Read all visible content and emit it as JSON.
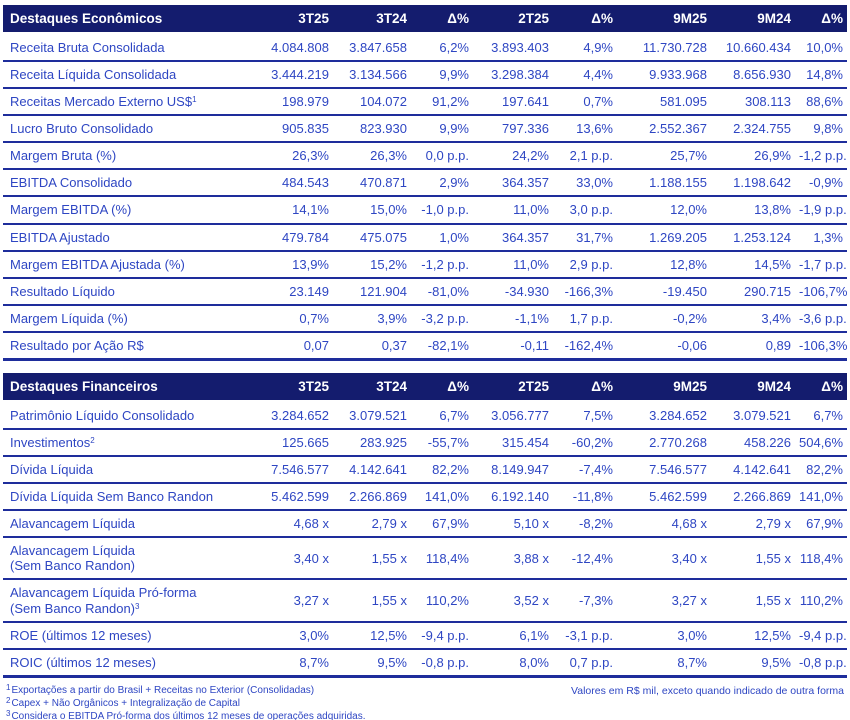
{
  "columns": [
    "3T25",
    "3T24",
    "Δ%",
    "2T25",
    "Δ%",
    "9M25",
    "9M24",
    "Δ%"
  ],
  "tables": [
    {
      "title": "Destaques Econômicos",
      "rows": [
        {
          "label": "Receita Bruta Consolidada",
          "values": [
            "4.084.808",
            "3.847.658",
            "6,2%",
            "3.893.403",
            "4,9%",
            "11.730.728",
            "10.660.434",
            "10,0%"
          ]
        },
        {
          "label": "Receita Líquida Consolidada",
          "values": [
            "3.444.219",
            "3.134.566",
            "9,9%",
            "3.298.384",
            "4,4%",
            "9.933.968",
            "8.656.930",
            "14,8%"
          ]
        },
        {
          "label": "Receitas Mercado Externo US$",
          "label_sup": "1",
          "values": [
            "198.979",
            "104.072",
            "91,2%",
            "197.641",
            "0,7%",
            "581.095",
            "308.113",
            "88,6%"
          ]
        },
        {
          "label": "Lucro Bruto Consolidado",
          "values": [
            "905.835",
            "823.930",
            "9,9%",
            "797.336",
            "13,6%",
            "2.552.367",
            "2.324.755",
            "9,8%"
          ]
        },
        {
          "label": "Margem Bruta (%)",
          "values": [
            "26,3%",
            "26,3%",
            "0,0 p.p.",
            "24,2%",
            "2,1 p.p.",
            "25,7%",
            "26,9%",
            "-1,2 p.p."
          ]
        },
        {
          "label": "EBITDA Consolidado",
          "values": [
            "484.543",
            "470.871",
            "2,9%",
            "364.357",
            "33,0%",
            "1.188.155",
            "1.198.642",
            "-0,9%"
          ]
        },
        {
          "label": "Margem EBITDA (%)",
          "values": [
            "14,1%",
            "15,0%",
            "-1,0 p.p.",
            "11,0%",
            "3,0 p.p.",
            "12,0%",
            "13,8%",
            "-1,9 p.p."
          ]
        },
        {
          "label": "EBITDA Ajustado",
          "values": [
            "479.784",
            "475.075",
            "1,0%",
            "364.357",
            "31,7%",
            "1.269.205",
            "1.253.124",
            "1,3%"
          ]
        },
        {
          "label": "Margem EBITDA Ajustada (%)",
          "values": [
            "13,9%",
            "15,2%",
            "-1,2 p.p.",
            "11,0%",
            "2,9 p.p.",
            "12,8%",
            "14,5%",
            "-1,7 p.p."
          ]
        },
        {
          "label": "Resultado Líquido",
          "values": [
            "23.149",
            "121.904",
            "-81,0%",
            "-34.930",
            "-166,3%",
            "-19.450",
            "290.715",
            "-106,7%"
          ]
        },
        {
          "label": "Margem Líquida (%)",
          "values": [
            "0,7%",
            "3,9%",
            "-3,2 p.p.",
            "-1,1%",
            "1,7 p.p.",
            "-0,2%",
            "3,4%",
            "-3,6 p.p."
          ]
        },
        {
          "label": "Resultado por Ação R$",
          "values": [
            "0,07",
            "0,37",
            "-82,1%",
            "-0,11",
            "-162,4%",
            "-0,06",
            "0,89",
            "-106,3%"
          ]
        }
      ]
    },
    {
      "title": "Destaques Financeiros",
      "rows": [
        {
          "label": "Patrimônio Líquido Consolidado",
          "values": [
            "3.284.652",
            "3.079.521",
            "6,7%",
            "3.056.777",
            "7,5%",
            "3.284.652",
            "3.079.521",
            "6,7%"
          ]
        },
        {
          "label": "Investimentos",
          "label_sup": "2",
          "values": [
            "125.665",
            "283.925",
            "-55,7%",
            "315.454",
            "-60,2%",
            "2.770.268",
            "458.226",
            "504,6%"
          ]
        },
        {
          "label": "Dívida Líquida",
          "values": [
            "7.546.577",
            "4.142.641",
            "82,2%",
            "8.149.947",
            "-7,4%",
            "7.546.577",
            "4.142.641",
            "82,2%"
          ]
        },
        {
          "label": "Dívida Líquida Sem Banco Randon",
          "values": [
            "5.462.599",
            "2.266.869",
            "141,0%",
            "6.192.140",
            "-11,8%",
            "5.462.599",
            "2.266.869",
            "141,0%"
          ]
        },
        {
          "label": "Alavancagem Líquida",
          "values": [
            "4,68 x",
            "2,79 x",
            "67,9%",
            "5,10 x",
            "-8,2%",
            "4,68 x",
            "2,79 x",
            "67,9%"
          ]
        },
        {
          "label": "Alavancagem Líquida",
          "label_line2": "(Sem Banco Randon)",
          "values": [
            "3,40 x",
            "1,55 x",
            "118,4%",
            "3,88 x",
            "-12,4%",
            "3,40 x",
            "1,55 x",
            "118,4%"
          ]
        },
        {
          "label": "Alavancagem Líquida Pró-forma",
          "label_line2": "(Sem Banco Randon)",
          "label_line2_sup": "3",
          "values": [
            "3,27 x",
            "1,55 x",
            "110,2%",
            "3,52 x",
            "-7,3%",
            "3,27 x",
            "1,55 x",
            "110,2%"
          ]
        },
        {
          "label": "ROE (últimos 12 meses)",
          "values": [
            "3,0%",
            "12,5%",
            "-9,4 p.p.",
            "6,1%",
            "-3,1 p.p.",
            "3,0%",
            "12,5%",
            "-9,4 p.p."
          ]
        },
        {
          "label": "ROIC (últimos 12 meses)",
          "values": [
            "8,7%",
            "9,5%",
            "-0,8 p.p.",
            "8,0%",
            "0,7 p.p.",
            "8,7%",
            "9,5%",
            "-0,8 p.p."
          ]
        }
      ]
    }
  ],
  "footnotes": [
    {
      "sup": "1",
      "text": "Exportações a partir do Brasil + Receitas no Exterior (Consolidadas)"
    },
    {
      "sup": "2",
      "text": "Capex + Não Orgânicos + Integralização de Capital"
    },
    {
      "sup": "3",
      "text": "Considera o EBITDA Pró-forma dos últimos 12 meses de operações adquiridas."
    }
  ],
  "units_note": "Valores em R$ mil, exceto quando indicado de outra forma",
  "colors": {
    "header_bg": "#141c6e",
    "header_text": "#ffffff",
    "body_text": "#2e46c3",
    "row_divider": "#1e2d9b"
  }
}
